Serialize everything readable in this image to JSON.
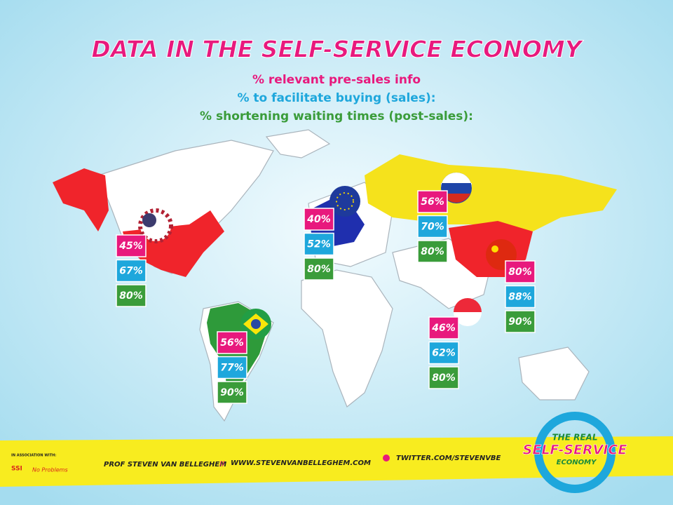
{
  "header": {
    "title": "DATA IN THE SELF-SERVICE ECONOMY"
  },
  "legend": [
    "% relevant pre-sales info",
    "% to facilitate buying (sales):",
    "% shortening waiting times (post-sales):"
  ],
  "regions": [
    {
      "values": [
        "45%",
        "67%",
        "80%"
      ]
    },
    {
      "values": [
        "40%",
        "52%",
        "80%"
      ]
    },
    {
      "values": [
        "56%",
        "70%",
        "80%"
      ]
    },
    {
      "values": [
        "80%",
        "88%",
        "90%"
      ]
    },
    {
      "values": [
        "46%",
        "62%",
        "80%"
      ]
    },
    {
      "values": [
        "56%",
        "77%",
        "90%"
      ]
    }
  ],
  "footer": {
    "association": "IN ASSOCIATION WITH:",
    "partner": "SSI",
    "partner_tagline": "No Problems",
    "author": "PROF STEVEN VAN BELLEGHEM",
    "separator": "//",
    "website": "WWW.STEVENVANBELLEGHEM.COM",
    "twitter": "TWITTER.COM/STEVENVBE",
    "logo": [
      "THE REAL",
      "SELF-SERVICE",
      "ECONOMY"
    ]
  }
}
